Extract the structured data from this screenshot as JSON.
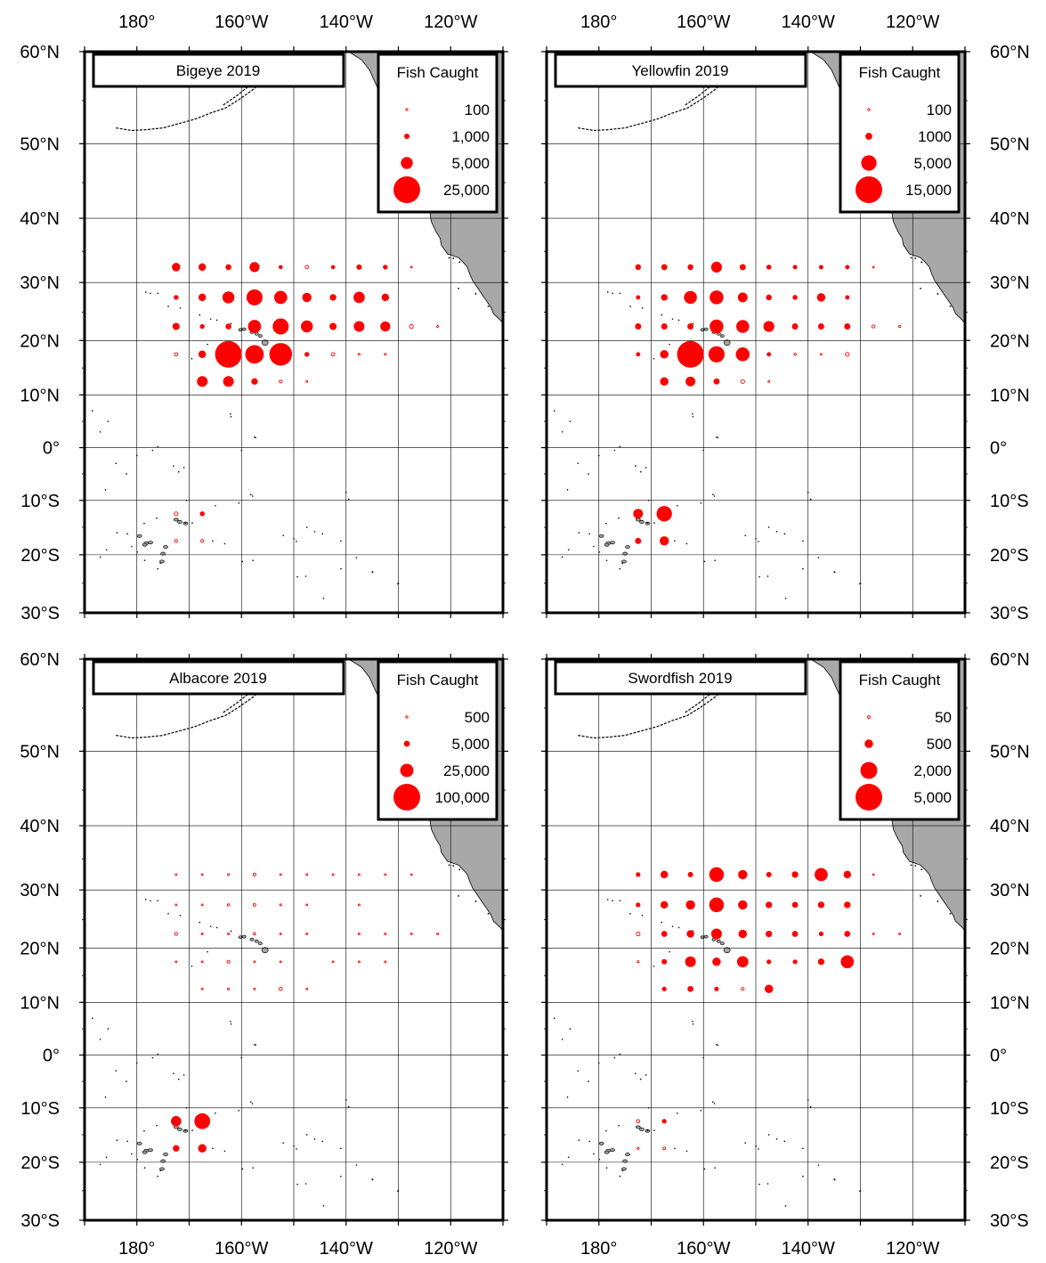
{
  "colors": {
    "catch": "#ff0000",
    "land": "#a8a8a8",
    "frame": "#000000",
    "grid": "#000000"
  },
  "axes": {
    "lon_ticks": [
      {
        "value": -180,
        "label": "180°"
      },
      {
        "value": -160,
        "label": "160°W"
      },
      {
        "value": -140,
        "label": "140°W"
      },
      {
        "value": -120,
        "label": "120°W"
      }
    ],
    "lat_ticks": [
      {
        "value": 60,
        "label": "60°N"
      },
      {
        "value": 50,
        "label": "50°N"
      },
      {
        "value": 40,
        "label": "40°N"
      },
      {
        "value": 30,
        "label": "30°N"
      },
      {
        "value": 20,
        "label": "20°N"
      },
      {
        "value": 10,
        "label": "10°N"
      },
      {
        "value": 0,
        "label": "0°"
      },
      {
        "value": -10,
        "label": "10°S"
      },
      {
        "value": -20,
        "label": "20°S"
      },
      {
        "value": -30,
        "label": "30°S"
      }
    ],
    "lon_range": [
      -190,
      -110
    ],
    "lat_range": [
      -30,
      60
    ]
  },
  "chart_data": [
    {
      "type": "scatter",
      "title": "Bigeye 2019",
      "legend": {
        "title": "Fish Caught",
        "placement": "top-right",
        "entries": [
          {
            "label": "100",
            "value": 100
          },
          {
            "label": "1,000",
            "value": 1000
          },
          {
            "label": "5,000",
            "value": 5000
          },
          {
            "label": "25,000",
            "value": 25000
          }
        ]
      },
      "points": [
        [
          -172.5,
          32.5,
          2500
        ],
        [
          -167.5,
          32.5,
          2000
        ],
        [
          -162.5,
          32.5,
          1200
        ],
        [
          -157.5,
          32.5,
          3500
        ],
        [
          -152.5,
          32.5,
          600
        ],
        [
          -147.5,
          32.5,
          400
        ],
        [
          -142.5,
          32.5,
          600
        ],
        [
          -137.5,
          32.5,
          1000
        ],
        [
          -132.5,
          32.5,
          800
        ],
        [
          -127.5,
          32.5,
          40
        ],
        [
          -172.5,
          27.5,
          800
        ],
        [
          -167.5,
          27.5,
          2000
        ],
        [
          -162.5,
          27.5,
          5000
        ],
        [
          -157.5,
          27.5,
          9000
        ],
        [
          -152.5,
          27.5,
          6000
        ],
        [
          -147.5,
          27.5,
          3000
        ],
        [
          -142.5,
          27.5,
          1500
        ],
        [
          -137.5,
          27.5,
          4500
        ],
        [
          -132.5,
          27.5,
          2000
        ],
        [
          -172.5,
          22.5,
          1800
        ],
        [
          -167.5,
          22.5,
          800
        ],
        [
          -162.5,
          22.5,
          1200
        ],
        [
          -157.5,
          22.5,
          6000
        ],
        [
          -152.5,
          22.5,
          9000
        ],
        [
          -147.5,
          22.5,
          5000
        ],
        [
          -142.5,
          22.5,
          1800
        ],
        [
          -137.5,
          22.5,
          4000
        ],
        [
          -132.5,
          22.5,
          3500
        ],
        [
          -127.5,
          22.5,
          500
        ],
        [
          -122.5,
          22.5,
          60
        ],
        [
          -172.5,
          17.5,
          400
        ],
        [
          -167.5,
          17.5,
          2000
        ],
        [
          -162.5,
          17.5,
          25000
        ],
        [
          -157.5,
          17.5,
          12000
        ],
        [
          -152.5,
          17.5,
          18000
        ],
        [
          -147.5,
          17.5,
          800
        ],
        [
          -142.5,
          17.5,
          400
        ],
        [
          -137.5,
          17.5,
          120
        ],
        [
          -132.5,
          17.5,
          120
        ],
        [
          -167.5,
          12.5,
          4000
        ],
        [
          -162.5,
          12.5,
          4000
        ],
        [
          -157.5,
          12.5,
          1500
        ],
        [
          -152.5,
          12.5,
          300
        ],
        [
          -147.5,
          12.5,
          40
        ],
        [
          -172.5,
          -12.5,
          500
        ],
        [
          -167.5,
          -12.5,
          800
        ],
        [
          -172.5,
          -17.5,
          300
        ],
        [
          -167.5,
          -17.5,
          300
        ]
      ]
    },
    {
      "type": "scatter",
      "title": "Yellowfin 2019",
      "legend": {
        "title": "Fish Caught",
        "placement": "top-right",
        "entries": [
          {
            "label": "100",
            "value": 100
          },
          {
            "label": "1000",
            "value": 1000
          },
          {
            "label": "5,000",
            "value": 5000
          },
          {
            "label": "15,000",
            "value": 15000
          }
        ]
      },
      "points": [
        [
          -172.5,
          32.5,
          700
        ],
        [
          -167.5,
          32.5,
          800
        ],
        [
          -162.5,
          32.5,
          700
        ],
        [
          -157.5,
          32.5,
          2500
        ],
        [
          -152.5,
          32.5,
          800
        ],
        [
          -147.5,
          32.5,
          500
        ],
        [
          -142.5,
          32.5,
          400
        ],
        [
          -137.5,
          32.5,
          400
        ],
        [
          -132.5,
          32.5,
          400
        ],
        [
          -127.5,
          32.5,
          40
        ],
        [
          -172.5,
          27.5,
          400
        ],
        [
          -167.5,
          27.5,
          900
        ],
        [
          -162.5,
          27.5,
          3500
        ],
        [
          -157.5,
          27.5,
          4000
        ],
        [
          -152.5,
          27.5,
          2000
        ],
        [
          -147.5,
          27.5,
          700
        ],
        [
          -142.5,
          27.5,
          500
        ],
        [
          -137.5,
          27.5,
          1500
        ],
        [
          -132.5,
          27.5,
          400
        ],
        [
          -172.5,
          22.5,
          800
        ],
        [
          -167.5,
          22.5,
          800
        ],
        [
          -162.5,
          22.5,
          800
        ],
        [
          -157.5,
          22.5,
          4000
        ],
        [
          -152.5,
          22.5,
          3500
        ],
        [
          -147.5,
          22.5,
          2500
        ],
        [
          -142.5,
          22.5,
          800
        ],
        [
          -137.5,
          22.5,
          800
        ],
        [
          -132.5,
          22.5,
          800
        ],
        [
          -127.5,
          22.5,
          200
        ],
        [
          -122.5,
          22.5,
          90
        ],
        [
          -172.5,
          17.5,
          400
        ],
        [
          -167.5,
          17.5,
          1500
        ],
        [
          -162.5,
          17.5,
          15000
        ],
        [
          -157.5,
          17.5,
          5500
        ],
        [
          -152.5,
          17.5,
          4000
        ],
        [
          -147.5,
          17.5,
          400
        ],
        [
          -142.5,
          17.5,
          100
        ],
        [
          -137.5,
          17.5,
          40
        ],
        [
          -132.5,
          17.5,
          300
        ],
        [
          -167.5,
          12.5,
          1500
        ],
        [
          -162.5,
          12.5,
          2000
        ],
        [
          -157.5,
          12.5,
          800
        ],
        [
          -152.5,
          12.5,
          300
        ],
        [
          -147.5,
          12.5,
          40
        ],
        [
          -172.5,
          -12.5,
          2000
        ],
        [
          -167.5,
          -12.5,
          5000
        ],
        [
          -172.5,
          -17.5,
          800
        ],
        [
          -167.5,
          -17.5,
          1800
        ]
      ]
    },
    {
      "type": "scatter",
      "title": "Albacore 2019",
      "legend": {
        "title": "Fish Caught",
        "placement": "top-right",
        "entries": [
          {
            "label": "500",
            "value": 500
          },
          {
            "label": "5,000",
            "value": 5000
          },
          {
            "label": "25,000",
            "value": 25000
          },
          {
            "label": "100,000",
            "value": 100000
          }
        ]
      },
      "points": [
        [
          -172.5,
          32.5,
          200
        ],
        [
          -167.5,
          32.5,
          400
        ],
        [
          -162.5,
          32.5,
          500
        ],
        [
          -157.5,
          32.5,
          1200
        ],
        [
          -152.5,
          32.5,
          300
        ],
        [
          -147.5,
          32.5,
          150
        ],
        [
          -142.5,
          32.5,
          150
        ],
        [
          -137.5,
          32.5,
          150
        ],
        [
          -132.5,
          32.5,
          150
        ],
        [
          -127.5,
          32.5,
          150
        ],
        [
          -172.5,
          27.5,
          200
        ],
        [
          -167.5,
          27.5,
          400
        ],
        [
          -162.5,
          27.5,
          700
        ],
        [
          -157.5,
          27.5,
          1000
        ],
        [
          -152.5,
          27.5,
          500
        ],
        [
          -147.5,
          27.5,
          400
        ],
        [
          -137.5,
          27.5,
          400
        ],
        [
          -172.5,
          22.5,
          1200
        ],
        [
          -167.5,
          22.5,
          300
        ],
        [
          -162.5,
          22.5,
          200
        ],
        [
          -157.5,
          22.5,
          700
        ],
        [
          -152.5,
          22.5,
          300
        ],
        [
          -147.5,
          22.5,
          200
        ],
        [
          -137.5,
          22.5,
          150
        ],
        [
          -132.5,
          22.5,
          150
        ],
        [
          -127.5,
          22.5,
          150
        ],
        [
          -122.5,
          22.5,
          150
        ],
        [
          -172.5,
          17.5,
          300
        ],
        [
          -167.5,
          17.5,
          400
        ],
        [
          -162.5,
          17.5,
          1200
        ],
        [
          -157.5,
          17.5,
          300
        ],
        [
          -152.5,
          17.5,
          400
        ],
        [
          -142.5,
          17.5,
          150
        ],
        [
          -137.5,
          17.5,
          150
        ],
        [
          -132.5,
          17.5,
          150
        ],
        [
          -167.5,
          12.5,
          300
        ],
        [
          -162.5,
          12.5,
          600
        ],
        [
          -157.5,
          12.5,
          200
        ],
        [
          -152.5,
          12.5,
          1500
        ],
        [
          -147.5,
          12.5,
          300
        ],
        [
          -172.5,
          -12.5,
          15000
        ],
        [
          -167.5,
          -12.5,
          35000
        ],
        [
          -172.5,
          -17.5,
          6000
        ],
        [
          -167.5,
          -17.5,
          10000
        ]
      ]
    },
    {
      "type": "scatter",
      "title": "Swordfish 2019",
      "legend": {
        "title": "Fish Caught",
        "placement": "top-right",
        "entries": [
          {
            "label": "50",
            "value": 50
          },
          {
            "label": "500",
            "value": 500
          },
          {
            "label": "2,000",
            "value": 2000
          },
          {
            "label": "5,000",
            "value": 5000
          }
        ]
      },
      "points": [
        [
          -172.5,
          32.5,
          150
        ],
        [
          -167.5,
          32.5,
          400
        ],
        [
          -162.5,
          32.5,
          200
        ],
        [
          -157.5,
          32.5,
          1500
        ],
        [
          -152.5,
          32.5,
          600
        ],
        [
          -147.5,
          32.5,
          200
        ],
        [
          -142.5,
          32.5,
          300
        ],
        [
          -137.5,
          32.5,
          1200
        ],
        [
          -132.5,
          32.5,
          400
        ],
        [
          -127.5,
          32.5,
          15
        ],
        [
          -172.5,
          27.5,
          150
        ],
        [
          -167.5,
          27.5,
          400
        ],
        [
          -162.5,
          27.5,
          600
        ],
        [
          -157.5,
          27.5,
          1500
        ],
        [
          -152.5,
          27.5,
          600
        ],
        [
          -147.5,
          27.5,
          300
        ],
        [
          -142.5,
          27.5,
          250
        ],
        [
          -137.5,
          27.5,
          300
        ],
        [
          -132.5,
          27.5,
          300
        ],
        [
          -172.5,
          22.5,
          100
        ],
        [
          -167.5,
          22.5,
          250
        ],
        [
          -162.5,
          22.5,
          400
        ],
        [
          -157.5,
          22.5,
          800
        ],
        [
          -152.5,
          22.5,
          500
        ],
        [
          -147.5,
          22.5,
          300
        ],
        [
          -142.5,
          22.5,
          250
        ],
        [
          -137.5,
          22.5,
          150
        ],
        [
          -132.5,
          22.5,
          250
        ],
        [
          -127.5,
          22.5,
          15
        ],
        [
          -122.5,
          22.5,
          15
        ],
        [
          -172.5,
          17.5,
          30
        ],
        [
          -167.5,
          17.5,
          200
        ],
        [
          -162.5,
          17.5,
          800
        ],
        [
          -157.5,
          17.5,
          500
        ],
        [
          -152.5,
          17.5,
          900
        ],
        [
          -147.5,
          17.5,
          150
        ],
        [
          -142.5,
          17.5,
          150
        ],
        [
          -137.5,
          17.5,
          300
        ],
        [
          -132.5,
          17.5,
          1200
        ],
        [
          -167.5,
          12.5,
          150
        ],
        [
          -162.5,
          12.5,
          250
        ],
        [
          -157.5,
          12.5,
          150
        ],
        [
          -152.5,
          12.5,
          60
        ],
        [
          -147.5,
          12.5,
          500
        ],
        [
          -172.5,
          -12.5,
          80
        ],
        [
          -167.5,
          -12.5,
          150
        ],
        [
          -172.5,
          -17.5,
          30
        ],
        [
          -167.5,
          -17.5,
          50
        ]
      ]
    }
  ]
}
